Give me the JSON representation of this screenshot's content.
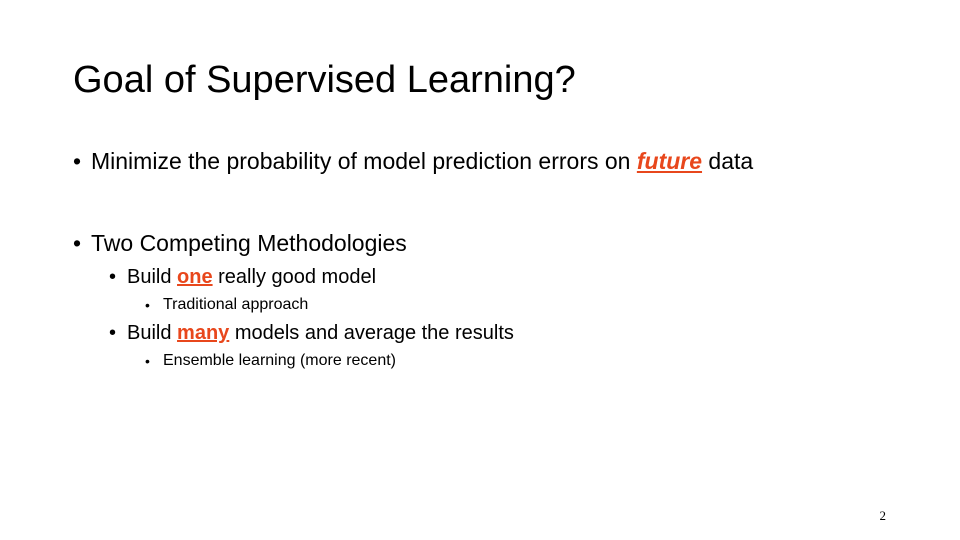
{
  "slide": {
    "title": "Goal of Supervised Learning?",
    "accent_color": "#E8471C",
    "page_number": "2"
  },
  "bullets": {
    "b1": {
      "before": "Minimize the probability of model prediction errors on ",
      "emph": "future",
      "after": " data"
    },
    "b2": {
      "text": "Two Competing Methodologies"
    },
    "b2_1": {
      "before": "Build ",
      "emph": "one",
      "after": " really good model"
    },
    "b2_1_1": {
      "text": "Traditional approach"
    },
    "b2_2": {
      "before": "Build ",
      "emph": "many",
      "after": " models and average the results"
    },
    "b2_2_1": {
      "text": "Ensemble learning (more recent)"
    }
  }
}
